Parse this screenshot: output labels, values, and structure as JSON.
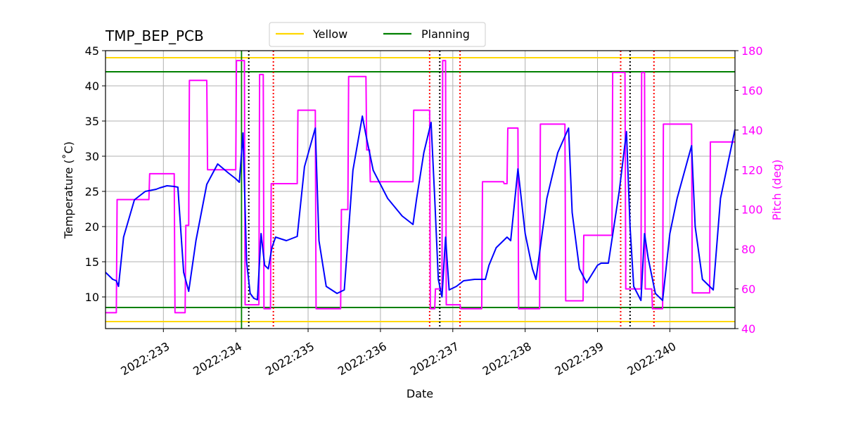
{
  "chart_data": {
    "type": "line",
    "title": "TMP_BEP_PCB",
    "xlabel": "Date",
    "ylabel": "Temperature ($^\\circ$C)",
    "ylabel_display": "Temperature (˚C)",
    "y2label": "Pitch (deg)",
    "xlim": [
      232.2,
      240.9
    ],
    "ylim": [
      5.5,
      45
    ],
    "y2lim": [
      40,
      180
    ],
    "x_ticks": [
      233,
      234,
      235,
      236,
      237,
      238,
      239,
      240
    ],
    "x_tick_labels": [
      "2022:233",
      "2022:234",
      "2022:235",
      "2022:236",
      "2022:237",
      "2022:238",
      "2022:239",
      "2022:240"
    ],
    "y_ticks": [
      10,
      15,
      20,
      25,
      30,
      35,
      40,
      45
    ],
    "y2_ticks": [
      40,
      60,
      80,
      100,
      120,
      140,
      160,
      180
    ],
    "grid": true,
    "legend_placement": "top-center",
    "legend": [
      {
        "name": "Yellow",
        "color": "#ffd700"
      },
      {
        "name": "Planning",
        "color": "#008000"
      }
    ],
    "limits": [
      {
        "name": "Yellow",
        "values": [
          44,
          6.5
        ],
        "color": "#ffd700"
      },
      {
        "name": "Planning",
        "values": [
          42,
          8.5
        ],
        "color": "#008000"
      }
    ],
    "vertical_lines": {
      "black_dotted": [
        234.18,
        236.82,
        239.45
      ],
      "red_dotted": [
        234.52,
        236.68,
        237.1,
        239.32,
        239.78
      ],
      "green_solid": [
        234.08
      ]
    },
    "series": [
      {
        "name": "",
        "axis": "left",
        "color": "#0000ff",
        "x": [
          232.2,
          232.3,
          232.35,
          232.38,
          232.45,
          232.6,
          232.75,
          232.9,
          232.95,
          233.05,
          233.15,
          233.2,
          233.28,
          233.35,
          233.45,
          233.6,
          233.75,
          233.9,
          234.0,
          234.05,
          234.1,
          234.15,
          234.2,
          234.25,
          234.3,
          234.35,
          234.4,
          234.45,
          234.5,
          234.55,
          234.7,
          234.85,
          234.95,
          235.1,
          235.15,
          235.25,
          235.4,
          235.5,
          235.55,
          235.62,
          235.75,
          235.8,
          235.9,
          236.1,
          236.3,
          236.45,
          236.5,
          236.6,
          236.7,
          236.75,
          236.8,
          236.85,
          236.9,
          236.95,
          237.05,
          237.15,
          237.3,
          237.45,
          237.5,
          237.6,
          237.75,
          237.8,
          237.9,
          238.0,
          238.1,
          238.15,
          238.3,
          238.45,
          238.6,
          238.65,
          238.75,
          238.85,
          239.0,
          239.05,
          239.15,
          239.3,
          239.4,
          239.45,
          239.5,
          239.6,
          239.65,
          239.7,
          239.8,
          239.9,
          240.0,
          240.1,
          240.3,
          240.35,
          240.45,
          240.6,
          240.7,
          240.9
        ],
        "values": [
          13.5,
          12.5,
          12.3,
          11.5,
          18.5,
          23.8,
          25.0,
          25.3,
          25.5,
          25.8,
          25.7,
          25.6,
          13.5,
          10.8,
          18.0,
          26.0,
          28.9,
          27.6,
          26.8,
          26.3,
          33.3,
          15.0,
          10.5,
          9.8,
          9.6,
          19.0,
          14.5,
          14.0,
          17.0,
          18.5,
          18.0,
          18.6,
          28.5,
          34.0,
          18.0,
          11.5,
          10.5,
          11.0,
          18.0,
          28.0,
          35.7,
          33.0,
          28.0,
          24.0,
          21.5,
          20.3,
          24.0,
          30.5,
          34.8,
          24.0,
          12.5,
          10.0,
          18.5,
          11.0,
          11.5,
          12.3,
          12.5,
          12.5,
          14.5,
          17.0,
          18.5,
          18.0,
          28.2,
          19.0,
          14.0,
          12.5,
          24.0,
          30.5,
          34.0,
          22.0,
          14.0,
          12.0,
          14.5,
          14.8,
          14.8,
          25.0,
          33.5,
          20.0,
          11.5,
          9.5,
          19.0,
          15.5,
          10.5,
          9.5,
          19.0,
          24.0,
          31.5,
          20.0,
          12.5,
          11.0,
          24.0,
          33.8
        ]
      },
      {
        "name": "",
        "axis": "right",
        "color": "#ff00ff",
        "x": [
          232.2,
          232.35,
          232.36,
          232.8,
          232.81,
          233.15,
          233.16,
          233.3,
          233.31,
          233.35,
          233.36,
          233.6,
          233.61,
          234.0,
          234.01,
          234.12,
          234.13,
          234.32,
          234.33,
          234.38,
          234.39,
          234.48,
          234.49,
          234.85,
          234.86,
          235.1,
          235.11,
          235.45,
          235.46,
          235.55,
          235.56,
          235.8,
          235.81,
          235.85,
          235.86,
          236.45,
          236.46,
          236.68,
          236.69,
          236.75,
          236.76,
          236.85,
          236.86,
          236.9,
          236.91,
          237.1,
          237.11,
          237.4,
          237.41,
          237.7,
          237.71,
          237.75,
          237.76,
          237.9,
          237.91,
          238.2,
          238.21,
          238.55,
          238.56,
          238.8,
          238.81,
          239.2,
          239.21,
          239.38,
          239.39,
          239.6,
          239.61,
          239.65,
          239.66,
          239.75,
          239.76,
          239.9,
          239.91,
          240.3,
          240.31,
          240.55,
          240.56,
          240.9
        ],
        "values": [
          48,
          48,
          105,
          105,
          118,
          118,
          48,
          48,
          92,
          92,
          165,
          165,
          120,
          120,
          175,
          175,
          52,
          52,
          168,
          168,
          50,
          50,
          113,
          113,
          150,
          150,
          50,
          50,
          100,
          100,
          167,
          167,
          130,
          130,
          114,
          114,
          150,
          150,
          50,
          50,
          60,
          60,
          175,
          175,
          52,
          52,
          50,
          50,
          114,
          114,
          113,
          113,
          141,
          141,
          50,
          50,
          143,
          143,
          54,
          54,
          87,
          87,
          169,
          169,
          60,
          60,
          169,
          169,
          60,
          60,
          50,
          50,
          143,
          143,
          58,
          58,
          134,
          134
        ]
      }
    ]
  }
}
